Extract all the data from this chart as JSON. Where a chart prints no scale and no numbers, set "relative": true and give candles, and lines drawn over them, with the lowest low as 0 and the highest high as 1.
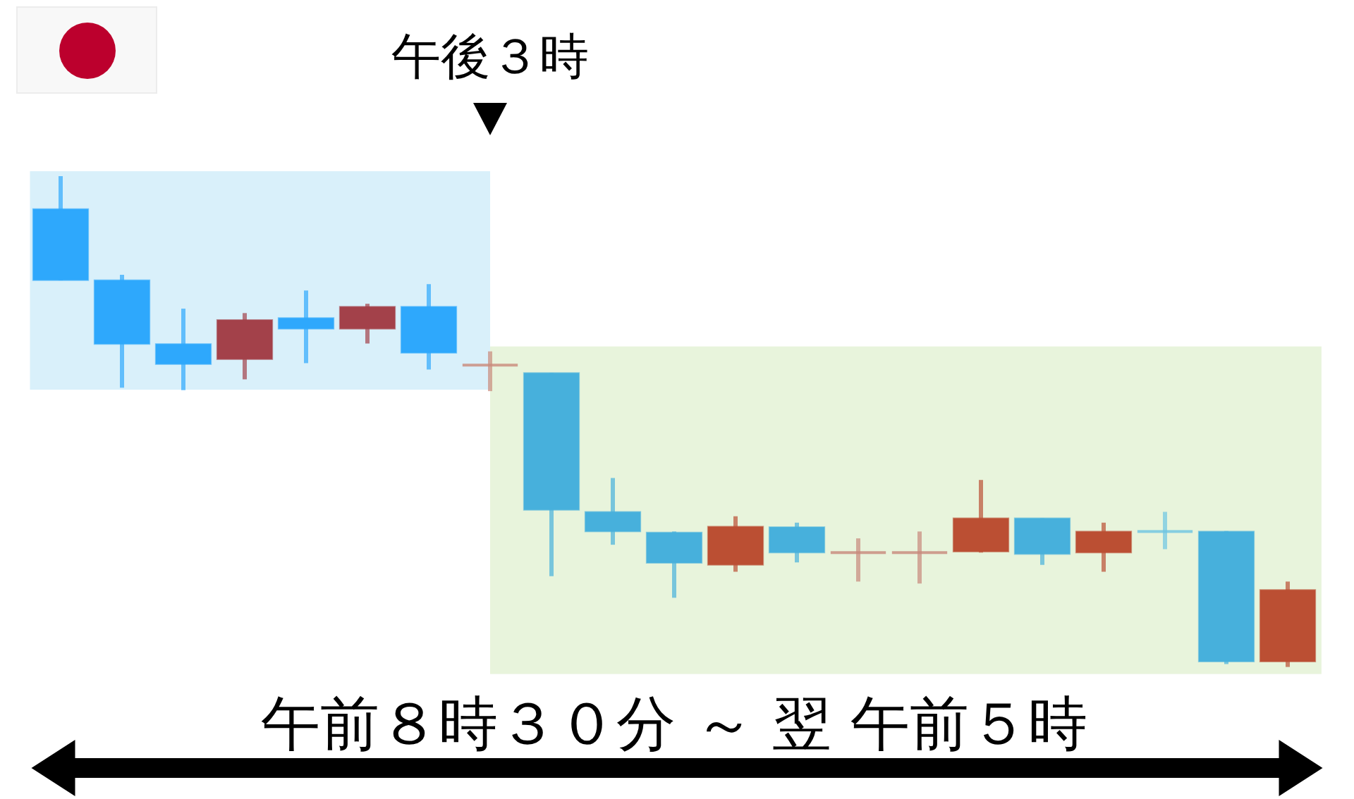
{
  "chart_data": {
    "type": "candlestick",
    "relative": true,
    "categories": [
      null,
      null,
      null,
      null,
      null,
      null,
      null,
      null,
      null,
      null,
      null,
      null,
      null,
      null,
      null,
      null,
      null,
      null,
      null,
      null,
      null
    ],
    "ohlc": [
      [
        0.933,
        1.0,
        0.788,
        0.788
      ],
      [
        0.788,
        0.799,
        0.569,
        0.658
      ],
      [
        0.658,
        0.73,
        0.564,
        0.617
      ],
      [
        0.627,
        0.721,
        0.586,
        0.707
      ],
      [
        0.711,
        0.767,
        0.619,
        0.689
      ],
      [
        0.689,
        0.74,
        0.659,
        0.734
      ],
      [
        0.734,
        0.78,
        0.606,
        0.64
      ],
      [
        0.615,
        0.643,
        0.562,
        0.615
      ],
      [
        0.599,
        0.599,
        0.185,
        0.32
      ],
      [
        0.316,
        0.385,
        0.249,
        0.276
      ],
      [
        0.274,
        0.276,
        0.141,
        0.212
      ],
      [
        0.208,
        0.307,
        0.194,
        0.286
      ],
      [
        0.285,
        0.294,
        0.213,
        0.233
      ],
      [
        0.233,
        0.262,
        0.174,
        0.233
      ],
      [
        0.233,
        0.276,
        0.17,
        0.233
      ],
      [
        0.235,
        0.381,
        0.233,
        0.303
      ],
      [
        0.303,
        0.303,
        0.208,
        0.23
      ],
      [
        0.233,
        0.294,
        0.194,
        0.276
      ],
      [
        0.276,
        0.316,
        0.24,
        0.276
      ],
      [
        0.276,
        0.277,
        0.006,
        0.011
      ],
      [
        0.011,
        0.174,
        0,
        0.157
      ]
    ],
    "colors": [
      "#2ea8fc",
      "#2ea8fc",
      "#2ea8fc",
      "#a3414a",
      "#2ea8fc",
      "#a3414a",
      "#2ea8fc",
      "#c98a7a",
      "#47b0dc",
      "#47b0dc",
      "#47b0dc",
      "#bb4f33",
      "#47b0dc",
      "#c7877a",
      "#c7877a",
      "#bb4f33",
      "#47b0dc",
      "#bb4f33",
      "#6cc4e2",
      "#47b0dc",
      "#bb4f33"
    ],
    "annotations": [
      "午後３時"
    ],
    "xlabel": "午前８時３０分 ～ 翌 午前５時"
  }
}
